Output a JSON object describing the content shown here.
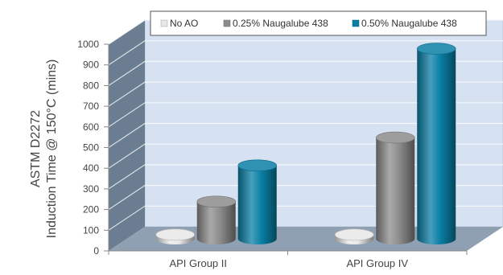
{
  "chart_data": {
    "type": "bar",
    "title": "",
    "ylabel_line1": "ASTM D2272",
    "ylabel_line2": "Induction Time @ 150°C (mins)",
    "xlabel": "",
    "ylim": [
      0,
      1000
    ],
    "ytick_step": 100,
    "yticks": [
      "0",
      "100",
      "200",
      "300",
      "400",
      "500",
      "600",
      "700",
      "800",
      "900",
      "1000"
    ],
    "grid": true,
    "legend_position": "top",
    "categories": [
      "API Group II",
      "API Group IV"
    ],
    "series": [
      {
        "name": "No AO",
        "values": [
          20,
          20
        ],
        "color": "#e8e8e8"
      },
      {
        "name": "0.25% Naugalube 438",
        "values": [
          180,
          490
        ],
        "color": "#8c8c8c"
      },
      {
        "name": "0.50% Naugalube 438",
        "values": [
          355,
          920
        ],
        "color": "#0a7fa6"
      }
    ],
    "colors": {
      "wall": "#d6e2f2",
      "side_wall": "#6b7d91",
      "floor": "#8ea0b2"
    }
  }
}
